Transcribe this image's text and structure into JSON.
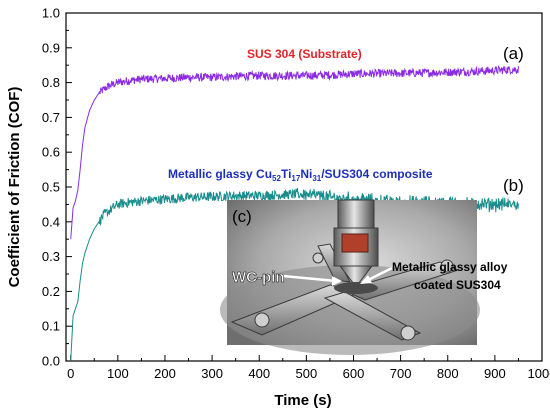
{
  "chart_data": {
    "type": "line",
    "xlabel": "Time (s)",
    "ylabel": "Coefficient of Friction (COF)",
    "xlim": [
      -10,
      1000
    ],
    "ylim": [
      0.0,
      1.0
    ],
    "x_ticks": [
      "0",
      "100",
      "200",
      "300",
      "400",
      "500",
      "600",
      "700",
      "800",
      "900",
      "1000"
    ],
    "y_ticks": [
      "0.0",
      "0.1",
      "0.2",
      "0.3",
      "0.4",
      "0.5",
      "0.6",
      "0.7",
      "0.8",
      "0.9",
      "1.0"
    ],
    "grid": false,
    "series": [
      {
        "name": "SUS 304 (Substrate)",
        "panel_label": "(a)",
        "color": "#8a2be2",
        "x": [
          0,
          5,
          10,
          15,
          20,
          25,
          30,
          40,
          50,
          60,
          70,
          80,
          90,
          100,
          120,
          150,
          200,
          250,
          300,
          350,
          400,
          450,
          500,
          550,
          600,
          650,
          700,
          750,
          800,
          850,
          900,
          950
        ],
        "y": [
          0.35,
          0.44,
          0.46,
          0.49,
          0.55,
          0.62,
          0.67,
          0.72,
          0.75,
          0.77,
          0.78,
          0.79,
          0.795,
          0.8,
          0.805,
          0.81,
          0.812,
          0.815,
          0.815,
          0.818,
          0.82,
          0.82,
          0.82,
          0.822,
          0.825,
          0.826,
          0.827,
          0.828,
          0.83,
          0.832,
          0.835,
          0.838
        ]
      },
      {
        "name": "Metallic glassy Cu52Ti17Ni31/SUS304 composite",
        "panel_label": "(b)",
        "color": "#1a8c8c",
        "x": [
          0,
          5,
          10,
          15,
          20,
          25,
          30,
          40,
          50,
          60,
          70,
          80,
          90,
          100,
          120,
          150,
          200,
          250,
          300,
          350,
          400,
          450,
          500,
          550,
          600,
          650,
          700,
          750,
          800,
          850,
          900,
          950
        ],
        "y": [
          0.0,
          0.13,
          0.15,
          0.17,
          0.23,
          0.28,
          0.31,
          0.35,
          0.38,
          0.4,
          0.42,
          0.43,
          0.44,
          0.45,
          0.455,
          0.46,
          0.465,
          0.47,
          0.472,
          0.475,
          0.475,
          0.478,
          0.48,
          0.47,
          0.465,
          0.46,
          0.455,
          0.455,
          0.455,
          0.45,
          0.45,
          0.45
        ]
      }
    ],
    "annotations": {
      "series_a_label": "SUS 304 (Substrate)",
      "series_a_color": "#e0242b",
      "series_b_prefix": "Metallic glassy Cu",
      "series_b_sub1": "52",
      "series_b_ti": "Ti",
      "series_b_sub2": "17",
      "series_b_ni": "Ni",
      "series_b_sub3": "31",
      "series_b_suffix": "/SUS304 composite",
      "series_b_color": "#1e2fb8",
      "label_a": "(a)",
      "label_b": "(b)",
      "label_c": "(c)"
    },
    "inset_photo": {
      "pin_label": "WC-pin",
      "coating_label_line1": "Metallic glassy alloy",
      "coating_label_line2": "coated SUS304"
    }
  }
}
